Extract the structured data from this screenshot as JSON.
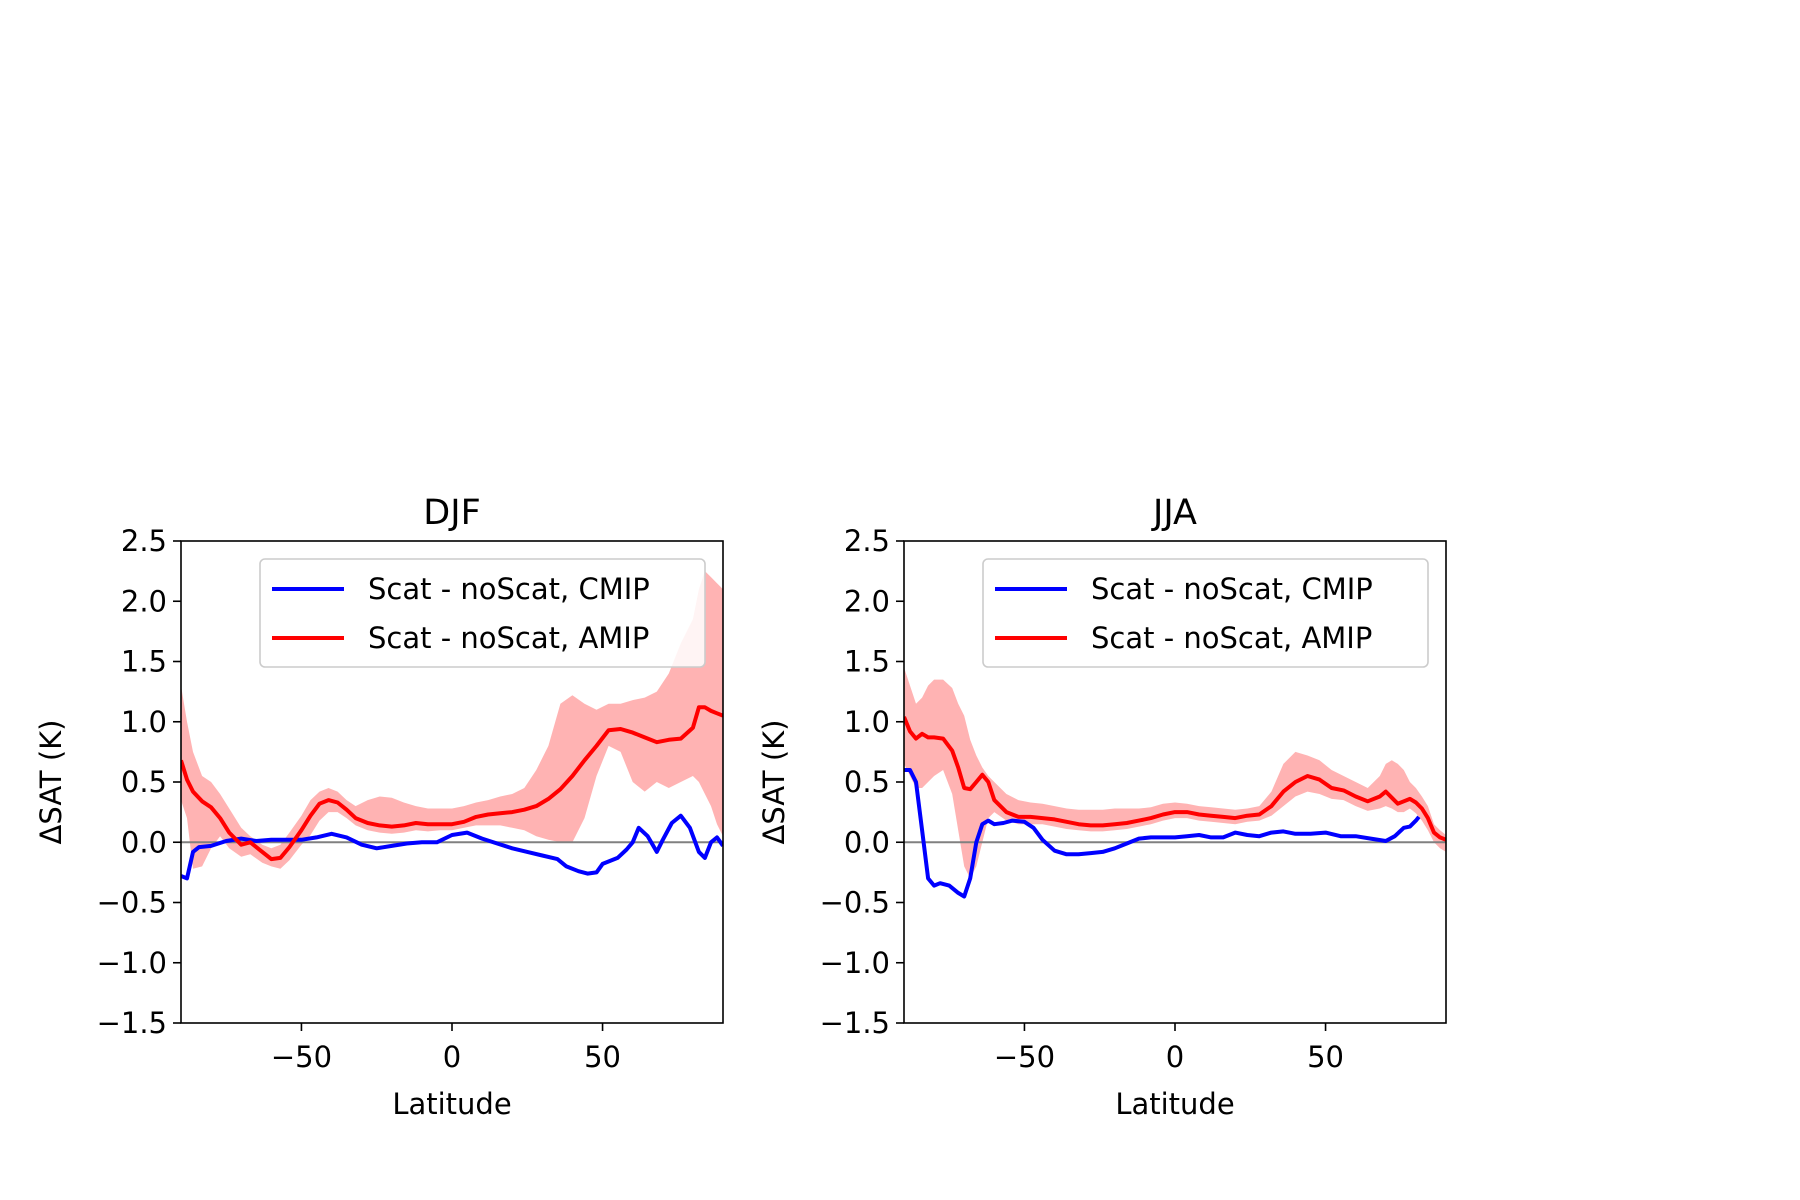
{
  "chart_data": [
    {
      "type": "line",
      "title": "DJF",
      "xlabel": "Latitude",
      "ylabel": "ΔSAT (K)",
      "xlim": [
        -90,
        90
      ],
      "ylim": [
        -1.5,
        2.5
      ],
      "xticks": [
        -50,
        0,
        50
      ],
      "xtick_labels": [
        "−50",
        "0",
        "50"
      ],
      "yticks": [
        -1.5,
        -1.0,
        -0.5,
        0.0,
        0.5,
        1.0,
        1.5,
        2.0,
        2.5
      ],
      "ytick_labels": [
        "−1.5",
        "−1.0",
        "−0.5",
        "0.0",
        "0.5",
        "1.0",
        "1.5",
        "2.0",
        "2.5"
      ],
      "zero_line": true,
      "grid": false,
      "legend_position": "upper-right",
      "series": [
        {
          "name": "Scat - noScat, CMIP",
          "color": "#0000ff",
          "x": [
            -90,
            -88,
            -86,
            -84,
            -80,
            -75,
            -70,
            -65,
            -60,
            -55,
            -50,
            -45,
            -40,
            -35,
            -30,
            -25,
            -20,
            -15,
            -10,
            -5,
            0,
            5,
            10,
            15,
            20,
            25,
            30,
            35,
            38,
            42,
            45,
            48,
            50,
            55,
            58,
            60,
            62,
            65,
            68,
            70,
            73,
            76,
            79,
            82,
            84,
            86,
            88,
            90
          ],
          "y": [
            -0.28,
            -0.3,
            -0.08,
            -0.04,
            -0.03,
            0.01,
            0.03,
            0.01,
            0.02,
            0.02,
            0.02,
            0.04,
            0.07,
            0.04,
            -0.02,
            -0.05,
            -0.03,
            -0.01,
            0.0,
            0.0,
            0.06,
            0.08,
            0.03,
            -0.01,
            -0.05,
            -0.08,
            -0.11,
            -0.14,
            -0.2,
            -0.24,
            -0.26,
            -0.25,
            -0.18,
            -0.13,
            -0.06,
            0.0,
            0.12,
            0.05,
            -0.08,
            0.02,
            0.16,
            0.22,
            0.12,
            -0.08,
            -0.13,
            0.0,
            0.04,
            -0.03
          ]
        },
        {
          "name": "Scat - noScat, AMIP",
          "color": "#ff0000",
          "band_color": "#ffb3b3",
          "x": [
            -90,
            -88,
            -86,
            -83,
            -80,
            -77,
            -74,
            -70,
            -67,
            -63,
            -60,
            -57,
            -54,
            -50,
            -47,
            -44,
            -41,
            -38,
            -35,
            -32,
            -28,
            -24,
            -20,
            -16,
            -12,
            -8,
            -4,
            0,
            4,
            8,
            12,
            16,
            20,
            24,
            28,
            32,
            36,
            40,
            44,
            48,
            52,
            56,
            60,
            64,
            68,
            72,
            76,
            80,
            82,
            84,
            86,
            88,
            90
          ],
          "y": [
            0.68,
            0.52,
            0.42,
            0.34,
            0.29,
            0.2,
            0.08,
            -0.02,
            0.0,
            -0.08,
            -0.14,
            -0.13,
            -0.04,
            0.1,
            0.22,
            0.32,
            0.35,
            0.33,
            0.27,
            0.2,
            0.16,
            0.14,
            0.13,
            0.14,
            0.16,
            0.15,
            0.15,
            0.15,
            0.17,
            0.21,
            0.23,
            0.24,
            0.25,
            0.27,
            0.3,
            0.36,
            0.44,
            0.55,
            0.68,
            0.8,
            0.93,
            0.94,
            0.91,
            0.87,
            0.83,
            0.85,
            0.86,
            0.95,
            1.12,
            1.12,
            1.09,
            1.07,
            1.05
          ],
          "y_low": [
            0.35,
            0.2,
            -0.22,
            -0.2,
            -0.05,
            0.05,
            -0.05,
            -0.12,
            -0.1,
            -0.17,
            -0.2,
            -0.22,
            -0.15,
            -0.02,
            0.06,
            0.18,
            0.25,
            0.25,
            0.2,
            0.14,
            0.1,
            0.08,
            0.07,
            0.08,
            0.1,
            0.09,
            0.1,
            0.1,
            0.12,
            0.14,
            0.14,
            0.14,
            0.12,
            0.1,
            0.05,
            0.02,
            0.0,
            0.0,
            0.2,
            0.55,
            0.8,
            0.75,
            0.5,
            0.42,
            0.5,
            0.45,
            0.5,
            0.55,
            0.5,
            0.4,
            0.3,
            0.15,
            0.05
          ],
          "y_high": [
            1.3,
            1.0,
            0.75,
            0.55,
            0.5,
            0.4,
            0.28,
            0.12,
            0.05,
            -0.02,
            -0.05,
            -0.02,
            0.08,
            0.22,
            0.35,
            0.42,
            0.45,
            0.42,
            0.35,
            0.3,
            0.35,
            0.38,
            0.37,
            0.33,
            0.3,
            0.28,
            0.28,
            0.28,
            0.3,
            0.33,
            0.35,
            0.38,
            0.4,
            0.45,
            0.6,
            0.8,
            1.15,
            1.22,
            1.15,
            1.1,
            1.15,
            1.15,
            1.18,
            1.2,
            1.25,
            1.4,
            1.65,
            1.85,
            2.1,
            2.25,
            2.2,
            2.15,
            2.1
          ]
        }
      ]
    },
    {
      "type": "line",
      "title": "JJA",
      "xlabel": "Latitude",
      "ylabel": "ΔSAT (K)",
      "xlim": [
        -90,
        90
      ],
      "ylim": [
        -1.5,
        2.5
      ],
      "xticks": [
        -50,
        0,
        50
      ],
      "xtick_labels": [
        "−50",
        "0",
        "50"
      ],
      "yticks": [
        -1.5,
        -1.0,
        -0.5,
        0.0,
        0.5,
        1.0,
        1.5,
        2.0,
        2.5
      ],
      "ytick_labels": [
        "−1.5",
        "−1.0",
        "−0.5",
        "0.0",
        "0.5",
        "1.0",
        "1.5",
        "2.0",
        "2.5"
      ],
      "zero_line": true,
      "grid": false,
      "legend_position": "upper-right",
      "series": [
        {
          "name": "Scat - noScat, CMIP",
          "color": "#0000ff",
          "x": [
            -90,
            -88,
            -86,
            -84,
            -82,
            -80,
            -78,
            -75,
            -72,
            -70,
            -68,
            -66,
            -64,
            -62,
            -60,
            -57,
            -54,
            -50,
            -47,
            -44,
            -40,
            -36,
            -32,
            -28,
            -24,
            -20,
            -16,
            -12,
            -8,
            -4,
            0,
            4,
            8,
            12,
            16,
            20,
            24,
            28,
            32,
            36,
            40,
            45,
            50,
            55,
            60,
            65,
            70,
            73,
            76,
            78,
            80,
            81
          ],
          "y": [
            0.6,
            0.6,
            0.5,
            0.1,
            -0.3,
            -0.36,
            -0.34,
            -0.36,
            -0.42,
            -0.45,
            -0.3,
            0.0,
            0.15,
            0.18,
            0.15,
            0.16,
            0.18,
            0.17,
            0.12,
            0.02,
            -0.07,
            -0.1,
            -0.1,
            -0.09,
            -0.08,
            -0.05,
            -0.01,
            0.03,
            0.04,
            0.04,
            0.04,
            0.05,
            0.06,
            0.04,
            0.04,
            0.08,
            0.06,
            0.05,
            0.08,
            0.09,
            0.07,
            0.07,
            0.08,
            0.05,
            0.05,
            0.03,
            0.01,
            0.05,
            0.12,
            0.13,
            0.18,
            0.21
          ]
        },
        {
          "name": "Scat - noScat, AMIP",
          "color": "#ff0000",
          "band_color": "#ffb3b3",
          "x": [
            -90,
            -88,
            -86,
            -84,
            -82,
            -80,
            -77,
            -74,
            -72,
            -70,
            -68,
            -66,
            -64,
            -62,
            -60,
            -56,
            -52,
            -48,
            -44,
            -40,
            -36,
            -32,
            -28,
            -24,
            -20,
            -16,
            -12,
            -8,
            -4,
            0,
            4,
            8,
            12,
            16,
            20,
            24,
            28,
            32,
            36,
            40,
            44,
            48,
            52,
            56,
            60,
            64,
            68,
            70,
            72,
            74,
            76,
            78,
            80,
            82,
            84,
            86,
            88,
            90
          ],
          "y": [
            1.04,
            0.92,
            0.86,
            0.9,
            0.87,
            0.87,
            0.86,
            0.76,
            0.62,
            0.45,
            0.44,
            0.5,
            0.56,
            0.5,
            0.35,
            0.25,
            0.21,
            0.21,
            0.2,
            0.19,
            0.17,
            0.15,
            0.14,
            0.14,
            0.15,
            0.16,
            0.18,
            0.2,
            0.23,
            0.25,
            0.25,
            0.23,
            0.22,
            0.21,
            0.2,
            0.22,
            0.23,
            0.3,
            0.42,
            0.5,
            0.55,
            0.52,
            0.45,
            0.43,
            0.38,
            0.34,
            0.38,
            0.42,
            0.37,
            0.32,
            0.34,
            0.36,
            0.33,
            0.28,
            0.2,
            0.08,
            0.04,
            0.02
          ],
          "y_low": [
            0.65,
            0.55,
            0.45,
            0.45,
            0.5,
            0.55,
            0.6,
            0.4,
            0.1,
            -0.2,
            -0.3,
            -0.2,
            0.0,
            0.2,
            0.25,
            0.18,
            0.15,
            0.15,
            0.15,
            0.13,
            0.11,
            0.1,
            0.09,
            0.09,
            0.1,
            0.11,
            0.13,
            0.15,
            0.18,
            0.2,
            0.2,
            0.18,
            0.17,
            0.16,
            0.15,
            0.17,
            0.18,
            0.22,
            0.3,
            0.38,
            0.42,
            0.4,
            0.36,
            0.35,
            0.3,
            0.26,
            0.28,
            0.3,
            0.28,
            0.25,
            0.25,
            0.28,
            0.24,
            0.18,
            0.1,
            0.0,
            -0.05,
            -0.08
          ],
          "y_high": [
            1.45,
            1.3,
            1.15,
            1.2,
            1.3,
            1.35,
            1.35,
            1.28,
            1.15,
            1.05,
            0.85,
            0.72,
            0.62,
            0.55,
            0.5,
            0.4,
            0.35,
            0.33,
            0.32,
            0.3,
            0.28,
            0.27,
            0.27,
            0.27,
            0.28,
            0.28,
            0.28,
            0.29,
            0.32,
            0.33,
            0.32,
            0.3,
            0.29,
            0.28,
            0.27,
            0.28,
            0.3,
            0.42,
            0.65,
            0.75,
            0.72,
            0.68,
            0.6,
            0.55,
            0.5,
            0.45,
            0.55,
            0.65,
            0.68,
            0.65,
            0.6,
            0.5,
            0.45,
            0.38,
            0.3,
            0.15,
            0.1,
            0.06
          ]
        }
      ]
    }
  ]
}
